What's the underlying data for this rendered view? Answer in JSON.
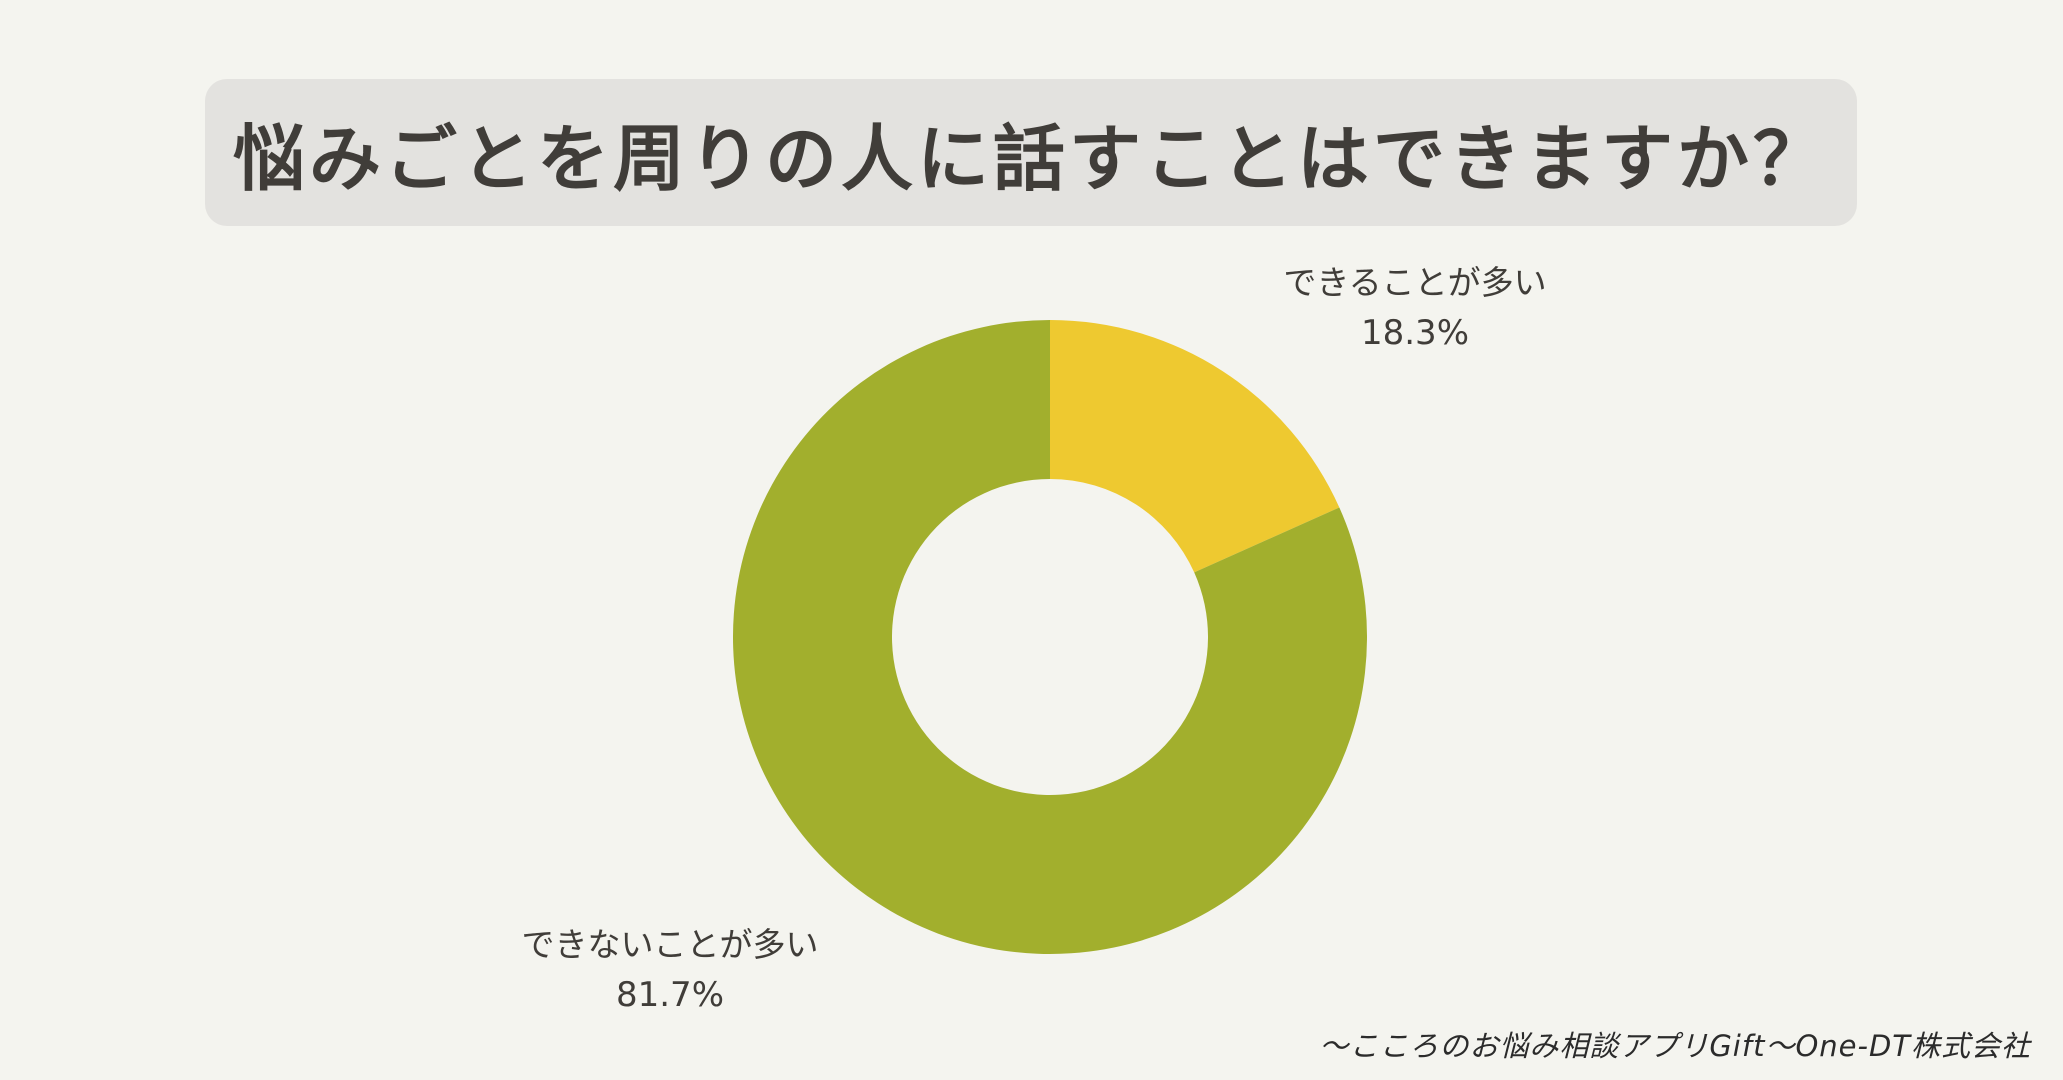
{
  "title": "悩みごとを周りの人に話すことはできますか？",
  "chart_data": {
    "type": "pie",
    "subtype": "donut",
    "title": "悩みごとを周りの人に話すことはできますか？",
    "categories": [
      "できることが多い",
      "できないことが多い"
    ],
    "values": [
      18.3,
      81.7
    ],
    "unit": "%",
    "colors": [
      "#EEC930",
      "#A2AF2D"
    ],
    "start_angle": "12 o'clock, clockwise",
    "legend": "none (direct labels)"
  },
  "labels": [
    {
      "name": "できることが多い",
      "pct": "18.3%"
    },
    {
      "name": "できないことが多い",
      "pct": "81.7%"
    }
  ],
  "credit": "〜こころのお悩み相談アプリGift〜One-DT株式会社",
  "colors": {
    "background": "#F4F4EF",
    "title_box": "#E3E2DF",
    "text": "#403D39"
  }
}
